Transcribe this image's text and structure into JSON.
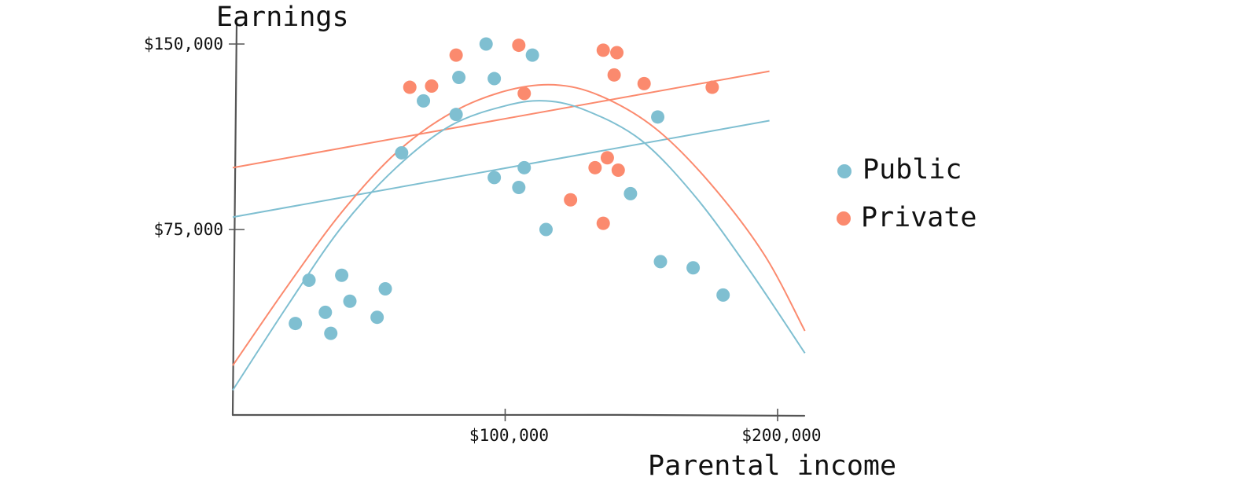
{
  "chart_data": {
    "type": "scatter",
    "title": "",
    "xlabel": "Parental income",
    "ylabel": "Earnings",
    "xlim": [
      0,
      210000
    ],
    "ylim": [
      0,
      150000
    ],
    "x_ticks": [
      {
        "value": 100000,
        "label": "$100,000"
      },
      {
        "value": 200000,
        "label": "$200,000"
      }
    ],
    "y_ticks": [
      {
        "value": 75000,
        "label": "$75,000"
      },
      {
        "value": 150000,
        "label": "$150,000"
      }
    ],
    "grid": false,
    "legend": "right",
    "series": [
      {
        "name": "Public",
        "color": "#7fbfd1",
        "points": [
          [
            23000,
            37000
          ],
          [
            28000,
            54500
          ],
          [
            34000,
            41500
          ],
          [
            36000,
            33000
          ],
          [
            40000,
            56500
          ],
          [
            43000,
            46000
          ],
          [
            53000,
            39500
          ],
          [
            56000,
            51000
          ],
          [
            62000,
            106000
          ],
          [
            70000,
            127000
          ],
          [
            82000,
            121500
          ],
          [
            83000,
            136500
          ],
          [
            93000,
            150000
          ],
          [
            96000,
            136000
          ],
          [
            96000,
            96000
          ],
          [
            105000,
            92000
          ],
          [
            107000,
            100000
          ],
          [
            110000,
            145500
          ],
          [
            115000,
            75000
          ],
          [
            146000,
            89500
          ],
          [
            156000,
            120500
          ],
          [
            157000,
            62000
          ],
          [
            169000,
            59500
          ],
          [
            180000,
            48500
          ]
        ]
      },
      {
        "name": "Private",
        "color": "#fb8a6e",
        "points": [
          [
            65000,
            132500
          ],
          [
            73000,
            133000
          ],
          [
            82000,
            145500
          ],
          [
            105000,
            149500
          ],
          [
            107000,
            130000
          ],
          [
            124000,
            87000
          ],
          [
            133000,
            100000
          ],
          [
            136000,
            147500
          ],
          [
            136000,
            77500
          ],
          [
            137500,
            104000
          ],
          [
            140000,
            137500
          ],
          [
            141000,
            146500
          ],
          [
            141500,
            99000
          ],
          [
            151000,
            134000
          ],
          [
            176000,
            132500
          ]
        ]
      }
    ],
    "linear_fits": [
      {
        "name": "Public",
        "color": "#7fbfd1",
        "from": [
          0,
          80000
        ],
        "to": [
          197000,
          119000
        ]
      },
      {
        "name": "Private",
        "color": "#fb8a6e",
        "from": [
          0,
          100000
        ],
        "to": [
          197000,
          139000
        ]
      }
    ],
    "curve_fits": [
      {
        "name": "Public",
        "color": "#7fbfd1",
        "points": [
          [
            0,
            10000
          ],
          [
            20000,
            44000
          ],
          [
            40000,
            76000
          ],
          [
            60000,
            100000
          ],
          [
            80000,
            117000
          ],
          [
            100000,
            125000
          ],
          [
            115000,
            127000
          ],
          [
            130000,
            123000
          ],
          [
            150000,
            111000
          ],
          [
            170000,
            88000
          ],
          [
            190000,
            58000
          ],
          [
            210000,
            25000
          ]
        ]
      },
      {
        "name": "Private",
        "color": "#fb8a6e",
        "points": [
          [
            0,
            20000
          ],
          [
            20000,
            52000
          ],
          [
            40000,
            82000
          ],
          [
            60000,
            106000
          ],
          [
            80000,
            122000
          ],
          [
            100000,
            131000
          ],
          [
            118000,
            133500
          ],
          [
            135000,
            129000
          ],
          [
            155000,
            116000
          ],
          [
            175000,
            94000
          ],
          [
            195000,
            65000
          ],
          [
            210000,
            34000
          ]
        ]
      }
    ]
  }
}
